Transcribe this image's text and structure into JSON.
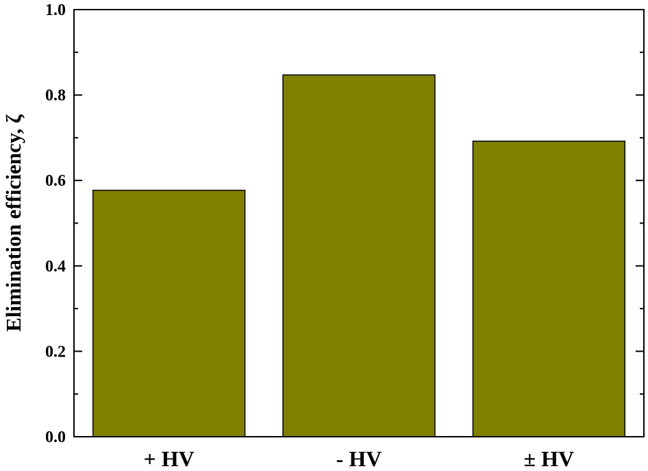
{
  "chart_data": {
    "type": "bar",
    "categories": [
      "+ HV",
      "- HV",
      "± HV"
    ],
    "values": [
      0.577,
      0.847,
      0.692
    ],
    "ylabel": "Elimination efficiency, ζ",
    "xlabel": "",
    "ylim": [
      0.0,
      1.0
    ],
    "yticks": [
      "0.0",
      "0.2",
      "0.4",
      "0.6",
      "0.8",
      "1.0"
    ],
    "bar_color": "#808000",
    "grid": false
  }
}
